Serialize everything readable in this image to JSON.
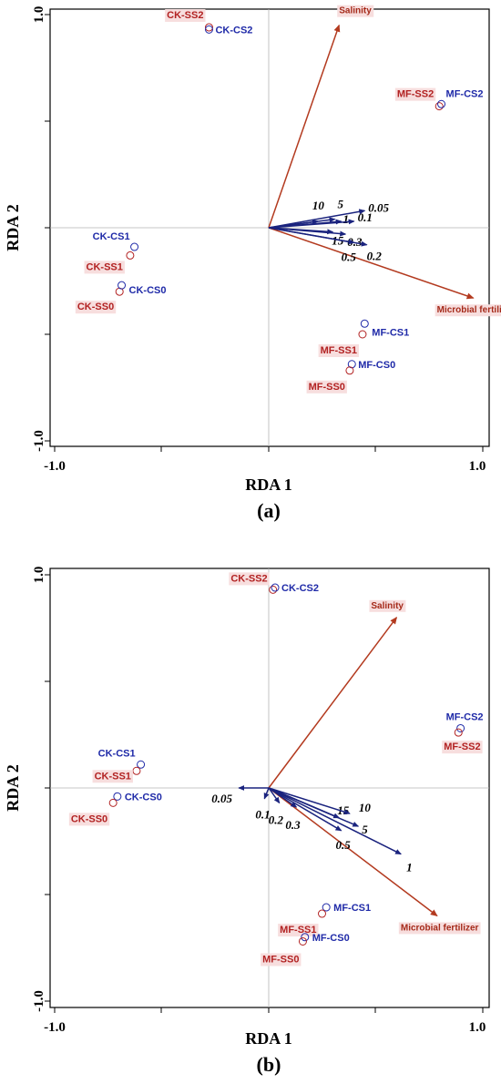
{
  "chart_data": [
    {
      "type": "scatter",
      "panel_label": "(a)",
      "xlabel": "RDA 1",
      "ylabel": "RDA 2",
      "xlim": [
        -1.02,
        1.02
      ],
      "ylim": [
        -1.03,
        1.03
      ],
      "x_tick_labels": [
        "-1.0",
        "1.0"
      ],
      "y_tick_labels": [
        "1.0",
        "-1.0"
      ],
      "env_vectors": [
        {
          "label": "Salinity",
          "x": 0.33,
          "y": 0.95
        },
        {
          "label": "Microbial fertilizer",
          "x": 0.96,
          "y": -0.33
        }
      ],
      "var_vectors": [
        {
          "label": "10",
          "x": 0.23,
          "y": 0.03
        },
        {
          "label": "5",
          "x": 0.31,
          "y": 0.04
        },
        {
          "label": "1",
          "x": 0.34,
          "y": 0.03
        },
        {
          "label": "0.1",
          "x": 0.4,
          "y": 0.03
        },
        {
          "label": "0.05",
          "x": 0.45,
          "y": 0.08
        },
        {
          "label": "15",
          "x": 0.3,
          "y": -0.02
        },
        {
          "label": "0.3",
          "x": 0.36,
          "y": -0.03
        },
        {
          "label": "0.5",
          "x": 0.4,
          "y": -0.07
        },
        {
          "label": "0.2",
          "x": 0.46,
          "y": -0.08
        }
      ],
      "sites": [
        {
          "label": "CK-SS2",
          "group": "SS",
          "x": -0.28,
          "y": 0.94
        },
        {
          "label": "CK-CS2",
          "group": "CS",
          "x": -0.28,
          "y": 0.93
        },
        {
          "label": "MF-SS2",
          "group": "SS",
          "x": 0.8,
          "y": 0.57
        },
        {
          "label": "MF-CS2",
          "group": "CS",
          "x": 0.81,
          "y": 0.58
        },
        {
          "label": "CK-CS1",
          "group": "CS",
          "x": -0.63,
          "y": -0.09
        },
        {
          "label": "CK-SS1",
          "group": "SS",
          "x": -0.65,
          "y": -0.13
        },
        {
          "label": "CK-SS0",
          "group": "SS",
          "x": -0.7,
          "y": -0.3
        },
        {
          "label": "CK-CS0",
          "group": "CS",
          "x": -0.69,
          "y": -0.27
        },
        {
          "label": "MF-CS1",
          "group": "CS",
          "x": 0.45,
          "y": -0.45
        },
        {
          "label": "MF-SS1",
          "group": "SS",
          "x": 0.44,
          "y": -0.5
        },
        {
          "label": "MF-CS0",
          "group": "CS",
          "x": 0.39,
          "y": -0.64
        },
        {
          "label": "MF-SS0",
          "group": "SS",
          "x": 0.38,
          "y": -0.67
        }
      ]
    },
    {
      "type": "scatter",
      "panel_label": "(b)",
      "xlabel": "RDA 1",
      "ylabel": "RDA 2",
      "xlim": [
        -1.02,
        1.02
      ],
      "ylim": [
        -1.03,
        1.03
      ],
      "x_tick_labels": [
        "-1.0",
        "1.0"
      ],
      "y_tick_labels": [
        "1.0",
        "-1.0"
      ],
      "env_vectors": [
        {
          "label": "Salinity",
          "x": 0.6,
          "y": 0.8
        },
        {
          "label": "Microbial fertilizer",
          "x": 0.79,
          "y": -0.6
        }
      ],
      "var_vectors": [
        {
          "label": "0.05",
          "x": -0.14,
          "y": -0.0
        },
        {
          "label": "0.1",
          "x": -0.02,
          "y": -0.05
        },
        {
          "label": "0.2",
          "x": 0.05,
          "y": -0.07
        },
        {
          "label": "0.3",
          "x": 0.13,
          "y": -0.09
        },
        {
          "label": "15",
          "x": 0.33,
          "y": -0.14
        },
        {
          "label": "10",
          "x": 0.38,
          "y": -0.12
        },
        {
          "label": "5",
          "x": 0.42,
          "y": -0.18
        },
        {
          "label": "0.5",
          "x": 0.34,
          "y": -0.2
        },
        {
          "label": "1",
          "x": 0.62,
          "y": -0.31
        }
      ],
      "sites": [
        {
          "label": "CK-SS2",
          "group": "SS",
          "x": 0.02,
          "y": 0.93
        },
        {
          "label": "CK-CS2",
          "group": "CS",
          "x": 0.03,
          "y": 0.94
        },
        {
          "label": "MF-CS2",
          "group": "CS",
          "x": 0.9,
          "y": 0.28
        },
        {
          "label": "MF-SS2",
          "group": "SS",
          "x": 0.89,
          "y": 0.26
        },
        {
          "label": "CK-CS1",
          "group": "CS",
          "x": -0.6,
          "y": 0.11
        },
        {
          "label": "CK-SS1",
          "group": "SS",
          "x": -0.62,
          "y": 0.08
        },
        {
          "label": "CK-CS0",
          "group": "CS",
          "x": -0.71,
          "y": -0.04
        },
        {
          "label": "CK-SS0",
          "group": "SS",
          "x": -0.73,
          "y": -0.07
        },
        {
          "label": "MF-CS1",
          "group": "CS",
          "x": 0.27,
          "y": -0.56
        },
        {
          "label": "MF-SS1",
          "group": "SS",
          "x": 0.25,
          "y": -0.59
        },
        {
          "label": "MF-CS0",
          "group": "CS",
          "x": 0.17,
          "y": -0.7
        },
        {
          "label": "MF-SS0",
          "group": "SS",
          "x": 0.16,
          "y": -0.72
        }
      ]
    }
  ]
}
